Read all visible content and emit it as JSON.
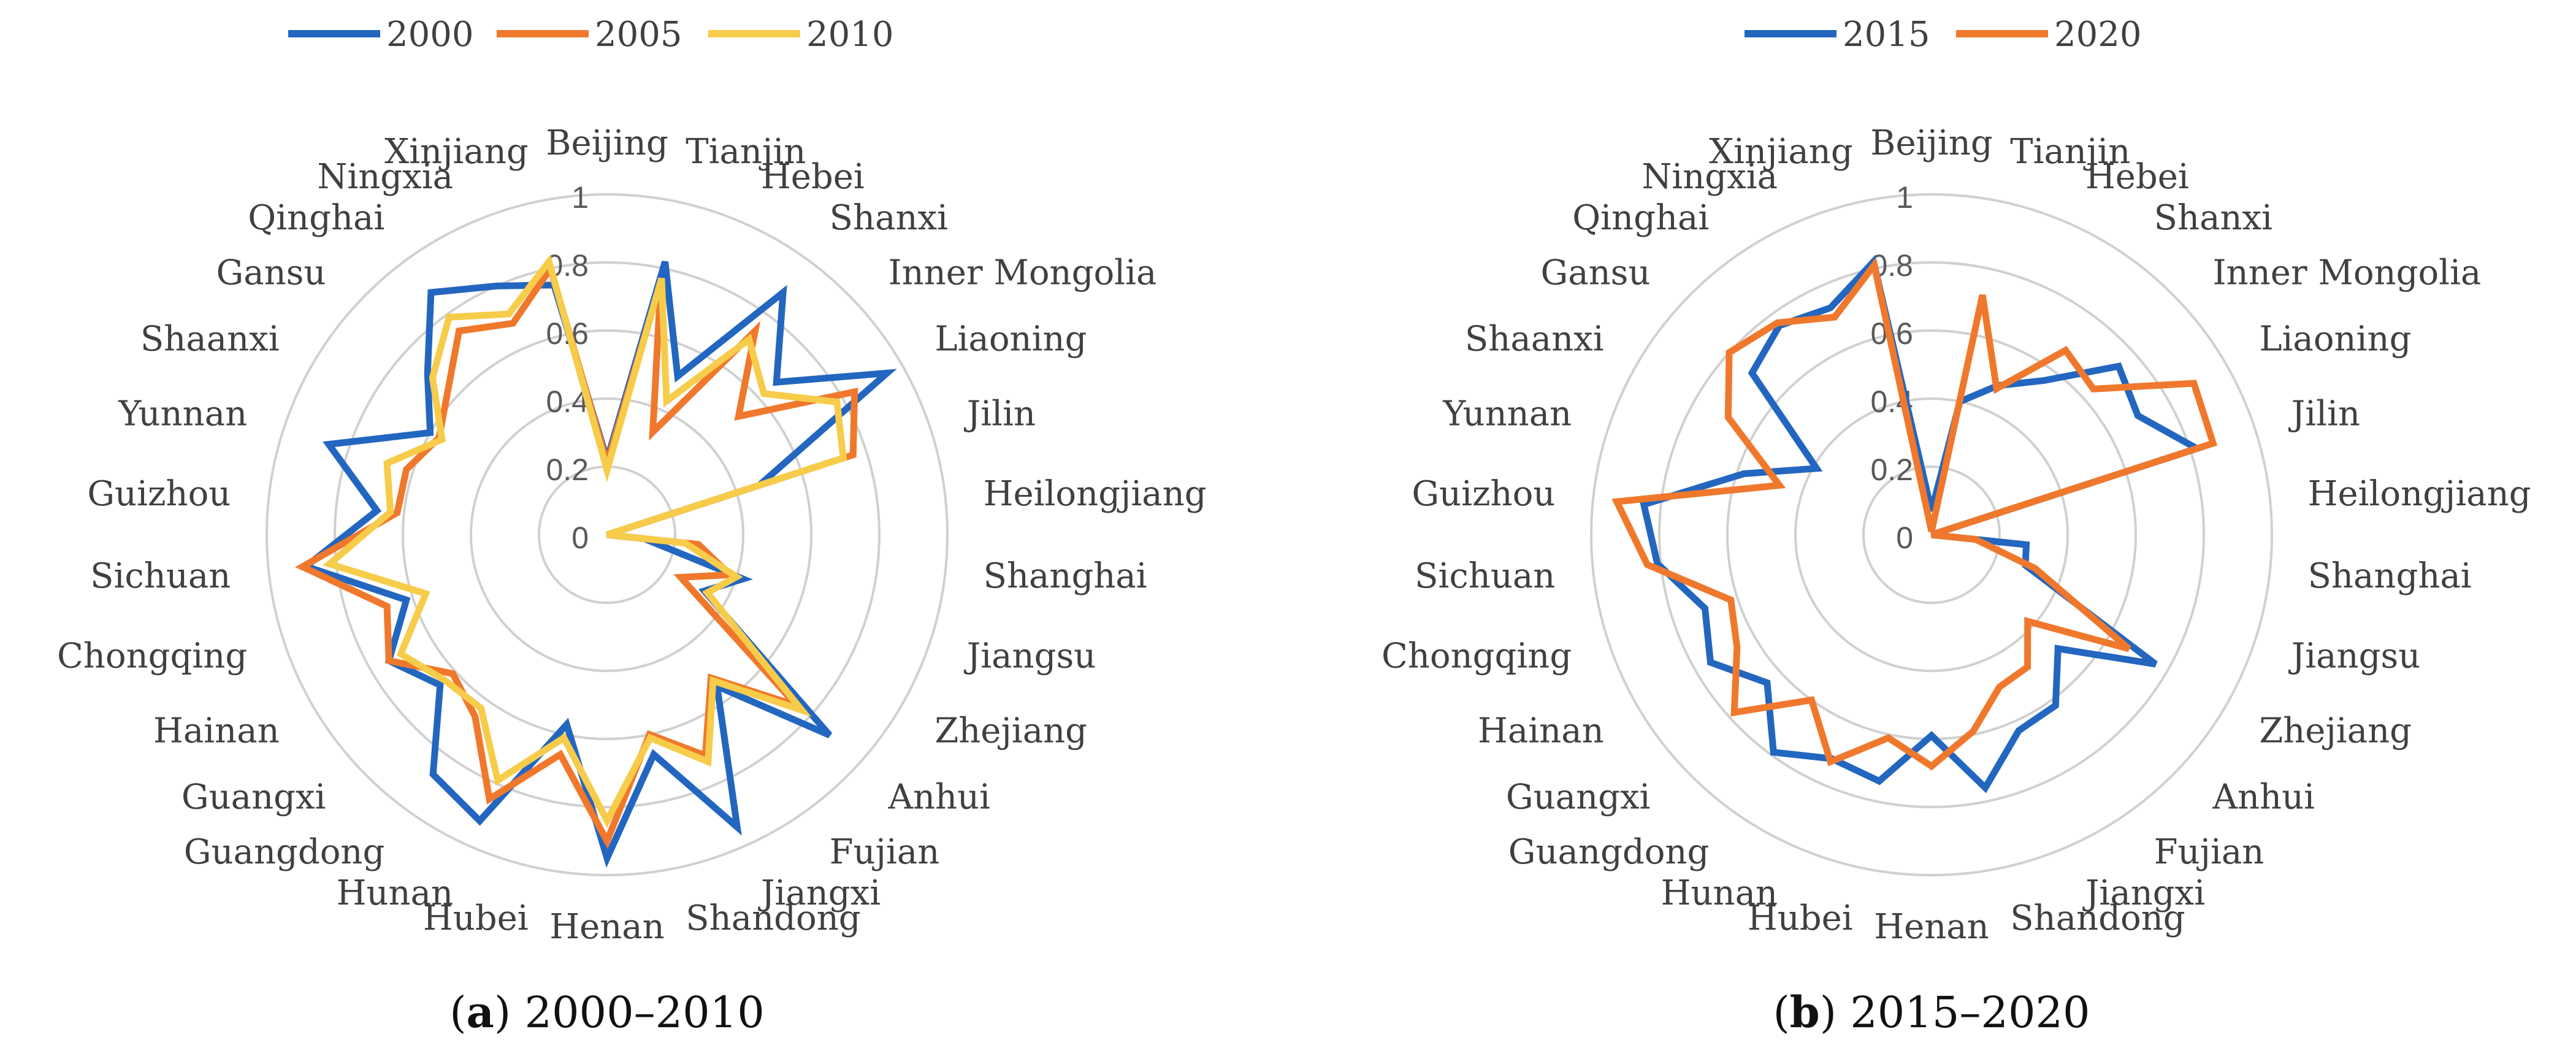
{
  "chart_data": [
    {
      "type": "radar",
      "title": "",
      "caption": {
        "letter": "a",
        "text": "2000–2010"
      },
      "categories": [
        "Beijing",
        "Tianjin",
        "Hebei",
        "Shanxi",
        "Inner Mongolia",
        "Liaoning",
        "Jilin",
        "Heilongjiang",
        "Shanghai",
        "Jiangsu",
        "Zhejiang",
        "Anhui",
        "Fujian",
        "Jiangxi",
        "Shandong",
        "Henan",
        "Hubei",
        "Hunan",
        "Guangdong",
        "Guangxi",
        "Hainan",
        "Chongqing",
        "Sichuan",
        "Guizhou",
        "Yunnan",
        "Shaanxi",
        "Gansu",
        "Qinghai",
        "Ningxia",
        "Xinjiang"
      ],
      "rlim": [
        0,
        1
      ],
      "rticks": [
        "0",
        "0.2",
        "0.4",
        "0.6",
        "0.8",
        "1"
      ],
      "legend_position": "top",
      "series": [
        {
          "name": "2000",
          "color": "#2266c0",
          "values": [
            0.22,
            0.82,
            0.51,
            0.88,
            0.67,
            0.95,
            0.47,
            0.0,
            0.11,
            0.42,
            0.33,
            0.88,
            0.55,
            0.94,
            0.66,
            0.95,
            0.57,
            0.92,
            0.87,
            0.66,
            0.74,
            0.62,
            0.89,
            0.68,
            0.86,
            0.6,
            0.71,
            0.88,
            0.8,
            0.75
          ]
        },
        {
          "name": "2005",
          "color": "#f0782c",
          "values": [
            0.21,
            0.76,
            0.33,
            0.74,
            0.52,
            0.84,
            0.76,
            0.0,
            0.27,
            0.38,
            0.25,
            0.75,
            0.52,
            0.71,
            0.6,
            0.9,
            0.66,
            0.85,
            0.66,
            0.61,
            0.74,
            0.68,
            0.9,
            0.62,
            0.62,
            0.57,
            0.63,
            0.74,
            0.68,
            0.8
          ]
        },
        {
          "name": "2010",
          "color": "#f7cc4a",
          "values": [
            0.19,
            0.77,
            0.43,
            0.71,
            0.62,
            0.78,
            0.73,
            0.0,
            0.23,
            0.4,
            0.34,
            0.77,
            0.53,
            0.73,
            0.61,
            0.84,
            0.61,
            0.79,
            0.63,
            0.64,
            0.7,
            0.56,
            0.82,
            0.64,
            0.68,
            0.56,
            0.69,
            0.79,
            0.71,
            0.82
          ]
        }
      ]
    },
    {
      "type": "radar",
      "title": "",
      "caption": {
        "letter": "b",
        "text": "2015–2020"
      },
      "categories": [
        "Beijing",
        "Tianjin",
        "Hebei",
        "Shanxi",
        "Inner Mongolia",
        "Liaoning",
        "Jilin",
        "Heilongjiang",
        "Shanghai",
        "Jiangsu",
        "Zhejiang",
        "Anhui",
        "Fujian",
        "Jiangxi",
        "Shandong",
        "Henan",
        "Hubei",
        "Hunan",
        "Guangdong",
        "Guangxi",
        "Hainan",
        "Chongqing",
        "Sichuan",
        "Guizhou",
        "Yunnan",
        "Shaanxi",
        "Gansu",
        "Qinghai",
        "Ningxia",
        "Xinjiang"
      ],
      "rlim": [
        0,
        1
      ],
      "rticks": [
        "0",
        "0.2",
        "0.4",
        "0.6",
        "0.8",
        "1"
      ],
      "legend_position": "top",
      "series": [
        {
          "name": "2015",
          "color": "#2266c0",
          "values": [
            0.07,
            0.4,
            0.48,
            0.56,
            0.74,
            0.7,
            0.82,
            0.0,
            0.28,
            0.29,
            0.76,
            0.5,
            0.62,
            0.63,
            0.76,
            0.59,
            0.74,
            0.72,
            0.79,
            0.65,
            0.75,
            0.7,
            0.81,
            0.85,
            0.58,
            0.39,
            0.71,
            0.76,
            0.73,
            0.82
          ]
        },
        {
          "name": "2020",
          "color": "#f0782c",
          "values": [
            0.01,
            0.72,
            0.47,
            0.67,
            0.64,
            0.89,
            0.87,
            0.0,
            0.13,
            0.32,
            0.67,
            0.38,
            0.48,
            0.49,
            0.59,
            0.68,
            0.61,
            0.73,
            0.6,
            0.78,
            0.66,
            0.62,
            0.84,
            0.93,
            0.47,
            0.69,
            0.8,
            0.77,
            0.7,
            0.81
          ]
        }
      ]
    }
  ]
}
